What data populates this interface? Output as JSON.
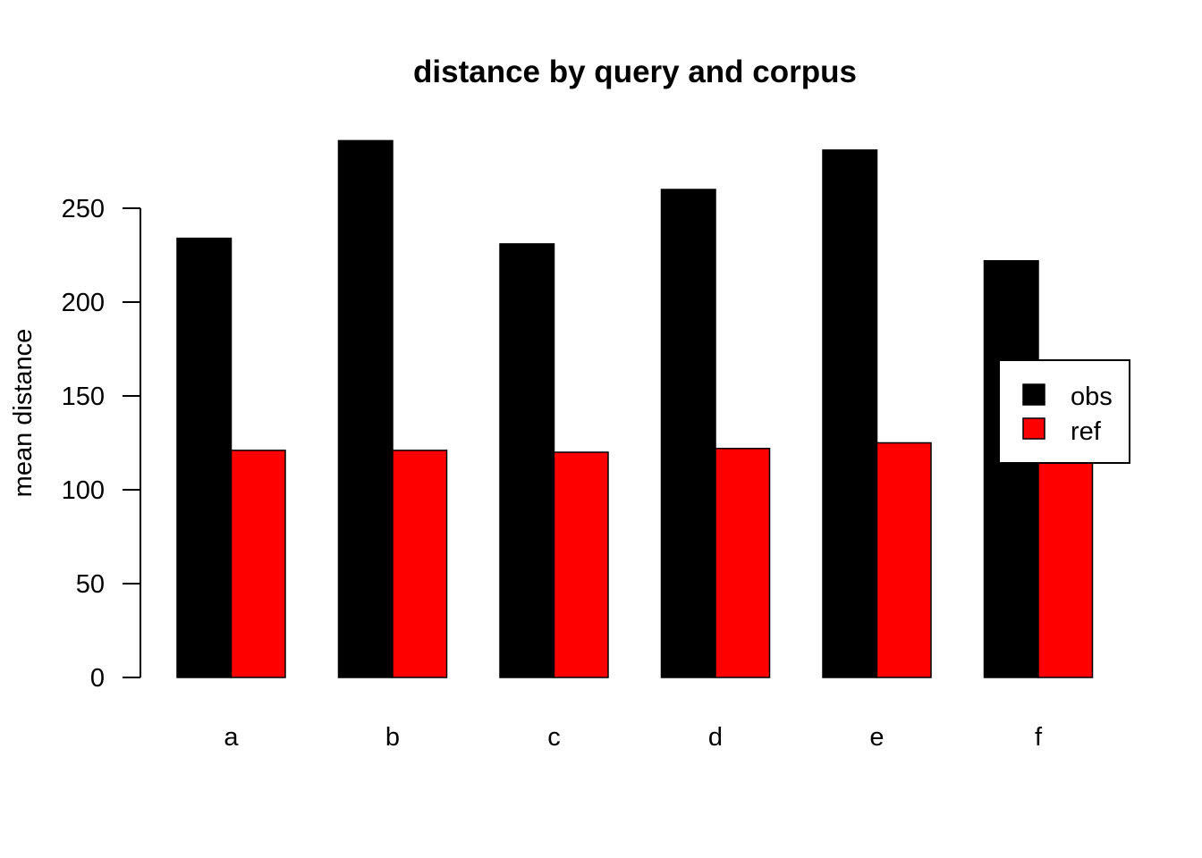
{
  "chart_data": {
    "type": "bar",
    "title": "distance by query and corpus",
    "xlabel": "",
    "ylabel": "mean distance",
    "categories": [
      "a",
      "b",
      "c",
      "d",
      "e",
      "f"
    ],
    "series": [
      {
        "name": "obs",
        "color": "#000000",
        "values": [
          234,
          286,
          231,
          260,
          281,
          222
        ]
      },
      {
        "name": "ref",
        "color": "#ff0000",
        "values": [
          121,
          121,
          120,
          122,
          125,
          122
        ]
      }
    ],
    "ylim": [
      0,
      290
    ],
    "yticks": [
      0,
      50,
      100,
      150,
      200,
      250
    ],
    "grid": false,
    "legend_position": "right",
    "bar_mode": "grouped"
  }
}
